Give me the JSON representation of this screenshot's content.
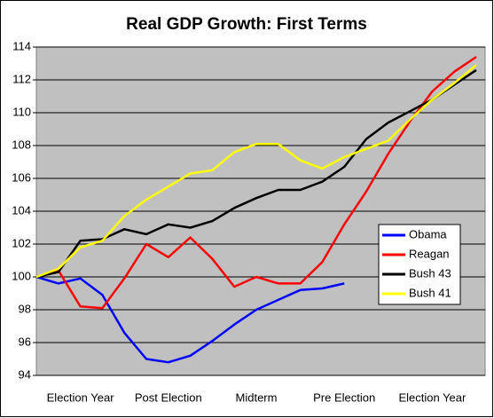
{
  "chart_data": {
    "type": "line",
    "title": "Real GDP Growth: First Terms",
    "categories": [
      null,
      null,
      "Election Year",
      null,
      null,
      null,
      "Post Election",
      null,
      null,
      null,
      "Midterm",
      null,
      null,
      null,
      "Pre Election",
      null,
      null,
      null,
      "Election Year",
      null,
      null
    ],
    "series": [
      {
        "name": "Obama",
        "color": "#0000ff",
        "values": [
          100,
          99.6,
          99.9,
          98.9,
          96.6,
          95.0,
          94.8,
          95.2,
          96.1,
          97.1,
          98.0,
          98.6,
          99.2,
          99.3,
          99.6,
          null,
          null,
          null,
          null,
          null,
          null
        ]
      },
      {
        "name": "Reagan",
        "color": "#ff0000",
        "values": [
          100,
          100.4,
          98.2,
          98.1,
          99.9,
          102.0,
          101.2,
          102.4,
          101.1,
          99.4,
          100.0,
          99.6,
          99.6,
          100.9,
          103.2,
          105.2,
          107.5,
          109.5,
          111.3,
          112.5,
          113.4
        ]
      },
      {
        "name": "Bush 43",
        "color": "#000000",
        "values": [
          100,
          100.3,
          102.2,
          102.3,
          102.9,
          102.6,
          103.2,
          103.0,
          103.4,
          104.2,
          104.8,
          105.3,
          105.3,
          105.8,
          106.7,
          108.4,
          109.4,
          110.1,
          110.8,
          111.7,
          112.6
        ]
      },
      {
        "name": "Bush 41",
        "color": "#ffff00",
        "values": [
          100,
          100.5,
          101.8,
          102.2,
          103.7,
          104.7,
          105.5,
          106.3,
          106.5,
          107.6,
          108.1,
          108.1,
          107.1,
          106.6,
          107.3,
          107.8,
          108.3,
          109.6,
          110.8,
          111.8,
          112.9
        ]
      }
    ],
    "ylim": [
      94,
      114
    ],
    "yticks": [
      94,
      96,
      98,
      100,
      102,
      104,
      106,
      108,
      110,
      112,
      114
    ],
    "grid": true,
    "legend": "right"
  }
}
